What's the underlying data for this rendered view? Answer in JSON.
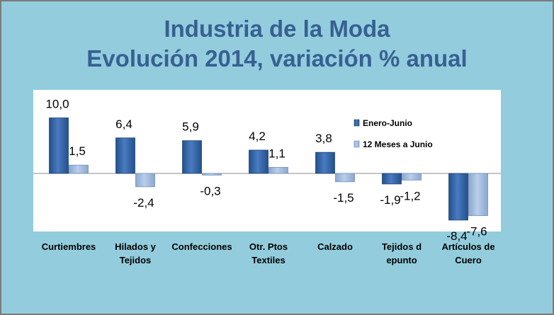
{
  "title_line1": "Industria de la Moda",
  "title_line2": "Evolución 2014, variación % anual",
  "colors": {
    "background": "#93cddd",
    "plot_area": "#ffffff",
    "title": "#376092",
    "series1": "#2e5d9f",
    "series2": "#9db8dd"
  },
  "chart_data": {
    "type": "bar",
    "title": "Industria de la Moda Evolución 2014, variación % anual",
    "categories": [
      [
        "Curtiembres"
      ],
      [
        "Hilados y",
        "Tejidos"
      ],
      [
        "Confecciones"
      ],
      [
        "Otr. Ptos",
        "Textiles"
      ],
      [
        "Calzado"
      ],
      [
        "Tejidos d",
        "epunto"
      ],
      [
        "Artículos de",
        "Cuero"
      ]
    ],
    "series": [
      {
        "name": "Enero-Junio",
        "values": [
          10.0,
          6.4,
          5.9,
          4.2,
          3.8,
          -1.9,
          -8.4
        ],
        "labels": [
          "10,0",
          "6,4",
          "5,9",
          "4,2",
          "3,8",
          "-1,9",
          "-8,4"
        ]
      },
      {
        "name": "12 Meses a Junio",
        "values": [
          1.5,
          -2.4,
          -0.3,
          1.1,
          -1.5,
          -1.2,
          -7.6
        ],
        "labels": [
          "1,5",
          "-2,4",
          "-0,3",
          "1,1",
          "-1,5",
          "-1,2",
          "-7,6"
        ]
      }
    ],
    "ylim": [
      -10,
      15
    ],
    "grid": false,
    "legend_position": "right, inside plot"
  }
}
